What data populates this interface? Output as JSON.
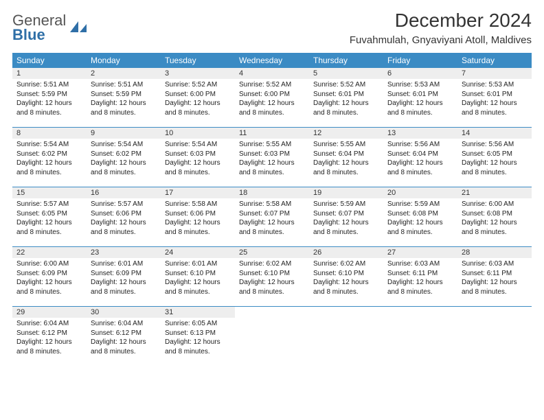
{
  "logo": {
    "line1": "General",
    "line2": "Blue"
  },
  "title": "December 2024",
  "subtitle": "Fuvahmulah, Gnyaviyani Atoll, Maldives",
  "colors": {
    "header_bg": "#3b8bc4",
    "header_text": "#ffffff",
    "daynum_bg": "#eeeeee",
    "rule": "#3b8bc4",
    "text": "#222222",
    "logo_gray": "#555555",
    "logo_blue": "#2f6fa7"
  },
  "day_names": [
    "Sunday",
    "Monday",
    "Tuesday",
    "Wednesday",
    "Thursday",
    "Friday",
    "Saturday"
  ],
  "weeks": [
    [
      {
        "n": "1",
        "sr": "Sunrise: 5:51 AM",
        "ss": "Sunset: 5:59 PM",
        "d1": "Daylight: 12 hours",
        "d2": "and 8 minutes."
      },
      {
        "n": "2",
        "sr": "Sunrise: 5:51 AM",
        "ss": "Sunset: 5:59 PM",
        "d1": "Daylight: 12 hours",
        "d2": "and 8 minutes."
      },
      {
        "n": "3",
        "sr": "Sunrise: 5:52 AM",
        "ss": "Sunset: 6:00 PM",
        "d1": "Daylight: 12 hours",
        "d2": "and 8 minutes."
      },
      {
        "n": "4",
        "sr": "Sunrise: 5:52 AM",
        "ss": "Sunset: 6:00 PM",
        "d1": "Daylight: 12 hours",
        "d2": "and 8 minutes."
      },
      {
        "n": "5",
        "sr": "Sunrise: 5:52 AM",
        "ss": "Sunset: 6:01 PM",
        "d1": "Daylight: 12 hours",
        "d2": "and 8 minutes."
      },
      {
        "n": "6",
        "sr": "Sunrise: 5:53 AM",
        "ss": "Sunset: 6:01 PM",
        "d1": "Daylight: 12 hours",
        "d2": "and 8 minutes."
      },
      {
        "n": "7",
        "sr": "Sunrise: 5:53 AM",
        "ss": "Sunset: 6:01 PM",
        "d1": "Daylight: 12 hours",
        "d2": "and 8 minutes."
      }
    ],
    [
      {
        "n": "8",
        "sr": "Sunrise: 5:54 AM",
        "ss": "Sunset: 6:02 PM",
        "d1": "Daylight: 12 hours",
        "d2": "and 8 minutes."
      },
      {
        "n": "9",
        "sr": "Sunrise: 5:54 AM",
        "ss": "Sunset: 6:02 PM",
        "d1": "Daylight: 12 hours",
        "d2": "and 8 minutes."
      },
      {
        "n": "10",
        "sr": "Sunrise: 5:54 AM",
        "ss": "Sunset: 6:03 PM",
        "d1": "Daylight: 12 hours",
        "d2": "and 8 minutes."
      },
      {
        "n": "11",
        "sr": "Sunrise: 5:55 AM",
        "ss": "Sunset: 6:03 PM",
        "d1": "Daylight: 12 hours",
        "d2": "and 8 minutes."
      },
      {
        "n": "12",
        "sr": "Sunrise: 5:55 AM",
        "ss": "Sunset: 6:04 PM",
        "d1": "Daylight: 12 hours",
        "d2": "and 8 minutes."
      },
      {
        "n": "13",
        "sr": "Sunrise: 5:56 AM",
        "ss": "Sunset: 6:04 PM",
        "d1": "Daylight: 12 hours",
        "d2": "and 8 minutes."
      },
      {
        "n": "14",
        "sr": "Sunrise: 5:56 AM",
        "ss": "Sunset: 6:05 PM",
        "d1": "Daylight: 12 hours",
        "d2": "and 8 minutes."
      }
    ],
    [
      {
        "n": "15",
        "sr": "Sunrise: 5:57 AM",
        "ss": "Sunset: 6:05 PM",
        "d1": "Daylight: 12 hours",
        "d2": "and 8 minutes."
      },
      {
        "n": "16",
        "sr": "Sunrise: 5:57 AM",
        "ss": "Sunset: 6:06 PM",
        "d1": "Daylight: 12 hours",
        "d2": "and 8 minutes."
      },
      {
        "n": "17",
        "sr": "Sunrise: 5:58 AM",
        "ss": "Sunset: 6:06 PM",
        "d1": "Daylight: 12 hours",
        "d2": "and 8 minutes."
      },
      {
        "n": "18",
        "sr": "Sunrise: 5:58 AM",
        "ss": "Sunset: 6:07 PM",
        "d1": "Daylight: 12 hours",
        "d2": "and 8 minutes."
      },
      {
        "n": "19",
        "sr": "Sunrise: 5:59 AM",
        "ss": "Sunset: 6:07 PM",
        "d1": "Daylight: 12 hours",
        "d2": "and 8 minutes."
      },
      {
        "n": "20",
        "sr": "Sunrise: 5:59 AM",
        "ss": "Sunset: 6:08 PM",
        "d1": "Daylight: 12 hours",
        "d2": "and 8 minutes."
      },
      {
        "n": "21",
        "sr": "Sunrise: 6:00 AM",
        "ss": "Sunset: 6:08 PM",
        "d1": "Daylight: 12 hours",
        "d2": "and 8 minutes."
      }
    ],
    [
      {
        "n": "22",
        "sr": "Sunrise: 6:00 AM",
        "ss": "Sunset: 6:09 PM",
        "d1": "Daylight: 12 hours",
        "d2": "and 8 minutes."
      },
      {
        "n": "23",
        "sr": "Sunrise: 6:01 AM",
        "ss": "Sunset: 6:09 PM",
        "d1": "Daylight: 12 hours",
        "d2": "and 8 minutes."
      },
      {
        "n": "24",
        "sr": "Sunrise: 6:01 AM",
        "ss": "Sunset: 6:10 PM",
        "d1": "Daylight: 12 hours",
        "d2": "and 8 minutes."
      },
      {
        "n": "25",
        "sr": "Sunrise: 6:02 AM",
        "ss": "Sunset: 6:10 PM",
        "d1": "Daylight: 12 hours",
        "d2": "and 8 minutes."
      },
      {
        "n": "26",
        "sr": "Sunrise: 6:02 AM",
        "ss": "Sunset: 6:10 PM",
        "d1": "Daylight: 12 hours",
        "d2": "and 8 minutes."
      },
      {
        "n": "27",
        "sr": "Sunrise: 6:03 AM",
        "ss": "Sunset: 6:11 PM",
        "d1": "Daylight: 12 hours",
        "d2": "and 8 minutes."
      },
      {
        "n": "28",
        "sr": "Sunrise: 6:03 AM",
        "ss": "Sunset: 6:11 PM",
        "d1": "Daylight: 12 hours",
        "d2": "and 8 minutes."
      }
    ],
    [
      {
        "n": "29",
        "sr": "Sunrise: 6:04 AM",
        "ss": "Sunset: 6:12 PM",
        "d1": "Daylight: 12 hours",
        "d2": "and 8 minutes."
      },
      {
        "n": "30",
        "sr": "Sunrise: 6:04 AM",
        "ss": "Sunset: 6:12 PM",
        "d1": "Daylight: 12 hours",
        "d2": "and 8 minutes."
      },
      {
        "n": "31",
        "sr": "Sunrise: 6:05 AM",
        "ss": "Sunset: 6:13 PM",
        "d1": "Daylight: 12 hours",
        "d2": "and 8 minutes."
      },
      null,
      null,
      null,
      null
    ]
  ]
}
